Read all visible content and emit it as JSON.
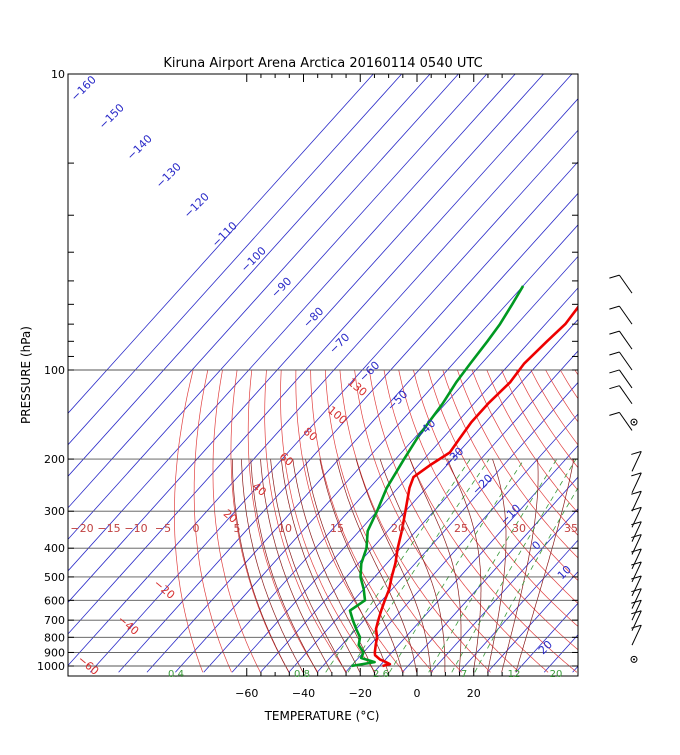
{
  "chart_data": {
    "type": "skew-t log-p diagram",
    "title": "Kiruna Airport Arena Arctica 20160114 0540 UTC",
    "xlabel": "TEMPERATURE (°C)",
    "ylabel": "PRESSURE (hPa)",
    "x_ticks": [
      -60,
      -40,
      -20,
      0,
      20
    ],
    "y_ticks_labeled": [
      10,
      100,
      200,
      300,
      400,
      500,
      600,
      700,
      800,
      900,
      1000
    ],
    "isotherm_labels": [
      -160,
      -150,
      -140,
      -130,
      -120,
      -110,
      -100,
      -90,
      -80,
      -70,
      -60,
      -50,
      -40,
      -30,
      -20,
      -10,
      0,
      10,
      20
    ],
    "theta_labels": [
      -20,
      -15,
      -10,
      -5,
      0,
      5,
      10,
      15,
      20,
      25,
      30,
      35
    ],
    "dry_adiabat_labels": [
      130,
      100,
      80,
      60,
      40,
      20,
      -20,
      -40,
      -60
    ],
    "mixing_ratio_labels": [
      "0.4",
      "0.8",
      "2.6",
      "7",
      "12",
      "20"
    ],
    "colors": {
      "isotherm": "#2a2ac8",
      "dry_adiabat": "#e04040",
      "moist_adiabat": "#8a1a1a",
      "mixing_ratio": "#3a9a3a",
      "temperature": "#ee0000",
      "dewpoint": "#009922",
      "isobar": "#555555"
    },
    "series": [
      {
        "name": "temperature",
        "points": [
          {
            "p": 1000,
            "t": -9
          },
          {
            "p": 985,
            "t": -7
          },
          {
            "p": 970,
            "t": -9
          },
          {
            "p": 950,
            "t": -12
          },
          {
            "p": 920,
            "t": -15
          },
          {
            "p": 900,
            "t": -16
          },
          {
            "p": 850,
            "t": -18
          },
          {
            "p": 800,
            "t": -20
          },
          {
            "p": 750,
            "t": -23
          },
          {
            "p": 700,
            "t": -25
          },
          {
            "p": 650,
            "t": -27
          },
          {
            "p": 600,
            "t": -29
          },
          {
            "p": 550,
            "t": -31
          },
          {
            "p": 500,
            "t": -34
          },
          {
            "p": 450,
            "t": -37
          },
          {
            "p": 400,
            "t": -41
          },
          {
            "p": 350,
            "t": -45
          },
          {
            "p": 300,
            "t": -50
          },
          {
            "p": 250,
            "t": -56
          },
          {
            "p": 230,
            "t": -58
          },
          {
            "p": 210,
            "t": -56
          },
          {
            "p": 190,
            "t": -53
          },
          {
            "p": 170,
            "t": -54
          },
          {
            "p": 150,
            "t": -55
          },
          {
            "p": 130,
            "t": -55
          },
          {
            "p": 110,
            "t": -54
          },
          {
            "p": 95,
            "t": -55
          },
          {
            "p": 80,
            "t": -54
          },
          {
            "p": 70,
            "t": -53
          },
          {
            "p": 60,
            "t": -54
          },
          {
            "p": 52,
            "t": -53
          }
        ]
      },
      {
        "name": "dewpoint",
        "points": [
          {
            "p": 1000,
            "t": -20
          },
          {
            "p": 970,
            "t": -13
          },
          {
            "p": 940,
            "t": -19
          },
          {
            "p": 900,
            "t": -20
          },
          {
            "p": 850,
            "t": -24
          },
          {
            "p": 800,
            "t": -26
          },
          {
            "p": 750,
            "t": -30
          },
          {
            "p": 700,
            "t": -34
          },
          {
            "p": 650,
            "t": -38
          },
          {
            "p": 600,
            "t": -36
          },
          {
            "p": 550,
            "t": -40
          },
          {
            "p": 500,
            "t": -45
          },
          {
            "p": 450,
            "t": -49
          },
          {
            "p": 400,
            "t": -52
          },
          {
            "p": 350,
            "t": -57
          },
          {
            "p": 300,
            "t": -60
          },
          {
            "p": 250,
            "t": -64
          },
          {
            "p": 200,
            "t": -67
          },
          {
            "p": 170,
            "t": -69
          },
          {
            "p": 150,
            "t": -70
          },
          {
            "p": 130,
            "t": -71
          },
          {
            "p": 110,
            "t": -73
          },
          {
            "p": 95,
            "t": -74
          },
          {
            "p": 80,
            "t": -75
          },
          {
            "p": 70,
            "t": -76
          },
          {
            "p": 60,
            "t": -78
          },
          {
            "p": 52,
            "t": -80
          }
        ]
      }
    ],
    "wind_barbs": [
      {
        "p": 55
      },
      {
        "p": 70
      },
      {
        "p": 85
      },
      {
        "p": 100
      },
      {
        "p": 115
      },
      {
        "p": 130
      },
      {
        "p": 160
      },
      {
        "p": 220
      },
      {
        "p": 260
      },
      {
        "p": 300
      },
      {
        "p": 340
      },
      {
        "p": 380
      },
      {
        "p": 420
      },
      {
        "p": 470
      },
      {
        "p": 520
      },
      {
        "p": 580
      },
      {
        "p": 640
      },
      {
        "p": 700
      },
      {
        "p": 760
      },
      {
        "p": 850
      }
    ],
    "calm_markers": [
      150,
      950
    ]
  }
}
